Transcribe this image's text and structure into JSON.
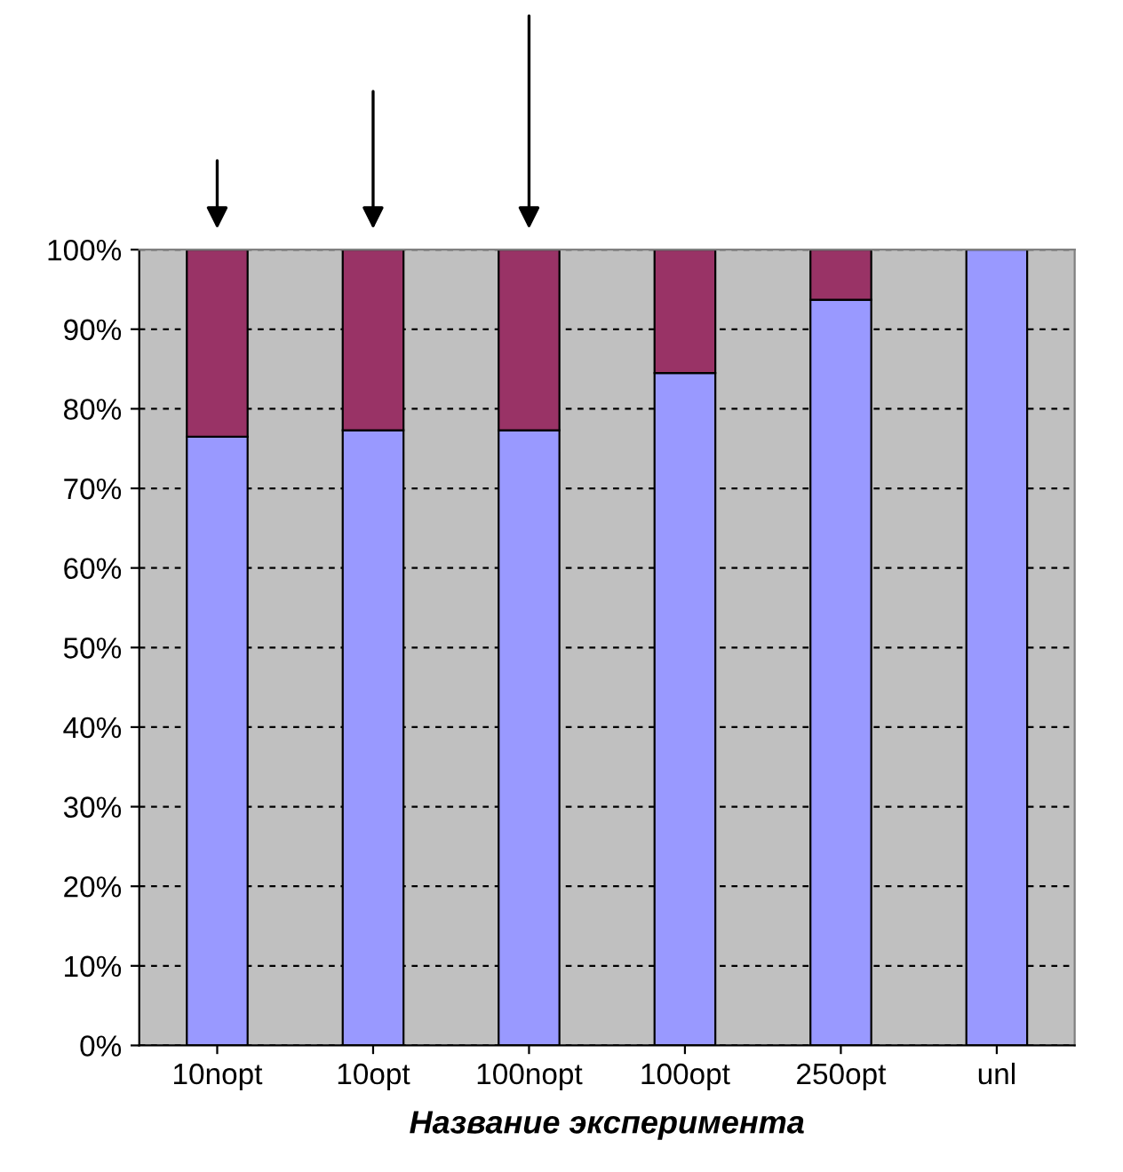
{
  "chart_data": {
    "type": "bar",
    "stacked": true,
    "xlabel": "Название эксперимента",
    "categories": [
      "10nopt",
      "10opt",
      "100nopt",
      "100opt",
      "250opt",
      "unl"
    ],
    "series": [
      {
        "color": "#9999ff",
        "values": [
          76.5,
          77.3,
          77.3,
          84.5,
          93.7,
          100
        ]
      },
      {
        "color": "#993366",
        "values": [
          23.5,
          22.7,
          22.7,
          15.5,
          6.3,
          null
        ]
      }
    ],
    "ylim": [
      0,
      100
    ],
    "yticks": [
      {
        "value": 0,
        "label": "0%"
      },
      {
        "value": 10,
        "label": "10%"
      },
      {
        "value": 20,
        "label": "20%"
      },
      {
        "value": 30,
        "label": "30%"
      },
      {
        "value": 40,
        "label": "40%"
      },
      {
        "value": 50,
        "label": "50%"
      },
      {
        "value": 60,
        "label": "60%"
      },
      {
        "value": 70,
        "label": "70%"
      },
      {
        "value": 80,
        "label": "80%"
      },
      {
        "value": 90,
        "label": "90%"
      },
      {
        "value": 100,
        "label": "100%"
      }
    ],
    "grid": "y",
    "legend": false
  }
}
